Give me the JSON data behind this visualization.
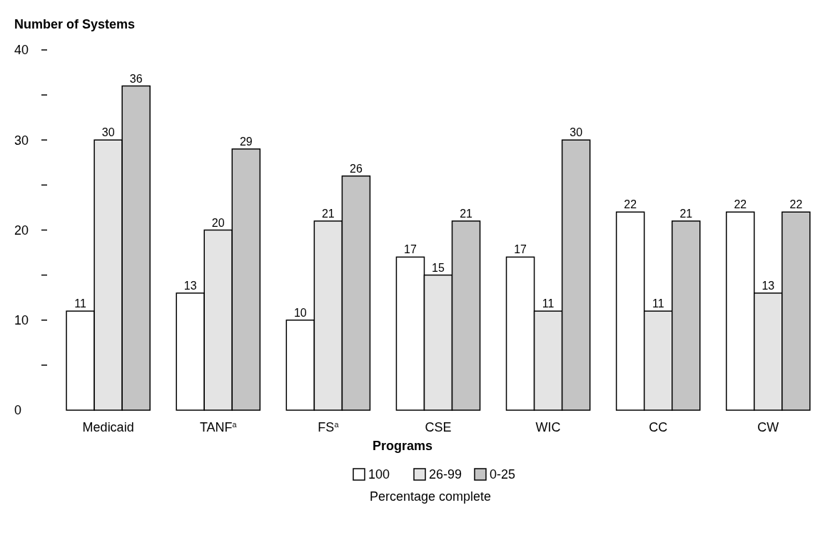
{
  "chart_data": {
    "type": "bar",
    "ylabel": "Number of Systems",
    "xlabel": "Programs",
    "legend_title": "Percentage complete",
    "legend": "bottom",
    "data_labels": true,
    "categories": [
      "Medicaid",
      "TANF$^{a}$",
      "FS$^{a}$",
      "CSE",
      "WIC",
      "CC",
      "CW"
    ],
    "series": [
      {
        "name": "100",
        "color": "#ffffff",
        "values": [
          11,
          13,
          10,
          17,
          17,
          22,
          22
        ]
      },
      {
        "name": "26-99",
        "color": "#e4e4e4",
        "values": [
          30,
          20,
          21,
          15,
          11,
          11,
          13
        ]
      },
      {
        "name": "0-25",
        "color": "#c4c4c4",
        "values": [
          36,
          29,
          26,
          21,
          30,
          21,
          22
        ]
      }
    ],
    "ylim": [
      0,
      40
    ],
    "yticks": [
      0,
      {
        "value": 5,
        "label": null
      },
      10,
      {
        "value": 15,
        "label": null
      },
      20,
      {
        "value": 25,
        "label": null
      },
      30,
      {
        "value": 35,
        "label": null
      },
      40
    ]
  }
}
